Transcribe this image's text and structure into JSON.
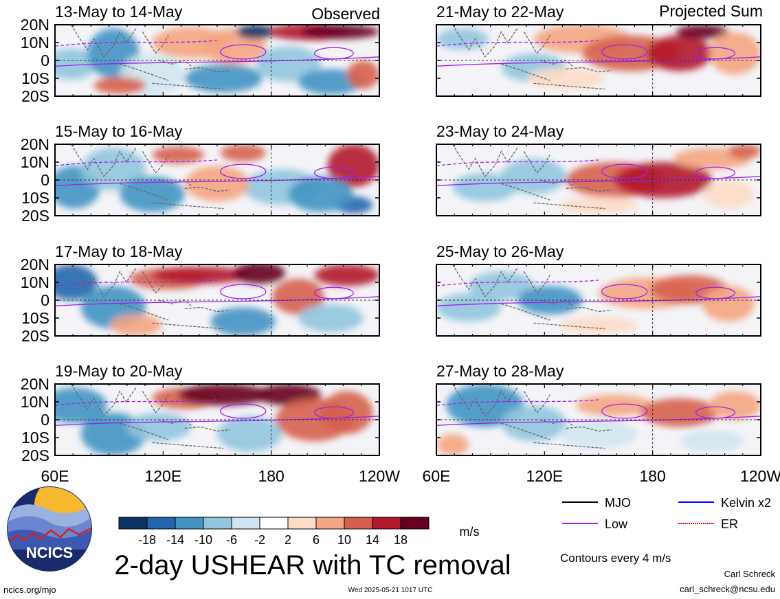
{
  "chart_data": [
    {
      "type": "heatmap",
      "columns": [
        {
          "header": "Observed",
          "panels": [
            {
              "title": "13-May to 14-May"
            },
            {
              "title": "15-May to 16-May"
            },
            {
              "title": "17-May to 18-May"
            },
            {
              "title": "19-May to 20-May"
            }
          ]
        },
        {
          "header": "Projected Sum",
          "panels": [
            {
              "title": "21-May to 22-May"
            },
            {
              "title": "23-May to 24-May"
            },
            {
              "title": "25-May to 26-May"
            },
            {
              "title": "27-May to 28-May"
            }
          ]
        }
      ],
      "lat_ticks": [
        "20N",
        "10N",
        "0",
        "10S",
        "20S"
      ],
      "lat_values": [
        20,
        10,
        0,
        -10,
        -20
      ],
      "lon_ticks": [
        "60E",
        "120E",
        "180",
        "120W"
      ],
      "lon_values": [
        60,
        120,
        180,
        240
      ],
      "lon_range": [
        60,
        240
      ],
      "lat_range": [
        -20,
        20
      ],
      "dashed_reference_lines": {
        "lat": 0,
        "lon": 180
      }
    }
  ],
  "colorbar": {
    "labels": [
      "-18",
      "-14",
      "-10",
      "-6",
      "-2",
      "2",
      "6",
      "10",
      "14",
      "18"
    ],
    "colors": [
      "#0a3563",
      "#2166ac",
      "#4393c3",
      "#92c5de",
      "#d1e5f0",
      "#ffffff",
      "#fddbc7",
      "#f4a582",
      "#d6604d",
      "#b2182b",
      "#67001f"
    ],
    "unit": "m/s"
  },
  "legend": {
    "items": [
      {
        "label": "MJO",
        "color": "#000000",
        "dashed": false
      },
      {
        "label": "Kelvin x2",
        "color": "#0000ff",
        "dashed": false
      },
      {
        "label": "Low",
        "color": "#a020f0",
        "dashed": false
      },
      {
        "label": "ER",
        "color": "#ff0000",
        "dashed": true
      }
    ],
    "note": "Contours every 4 m/s"
  },
  "footer": {
    "main_title": "2-day USHEAR with TC removal",
    "logo_text": "NCICS",
    "url": "ncics.org/mjo",
    "timestamp": "Wed 2025-05-21 1017 UTC",
    "author": "Carl Schreck",
    "email": "carl_schreck@ncsu.edu"
  }
}
